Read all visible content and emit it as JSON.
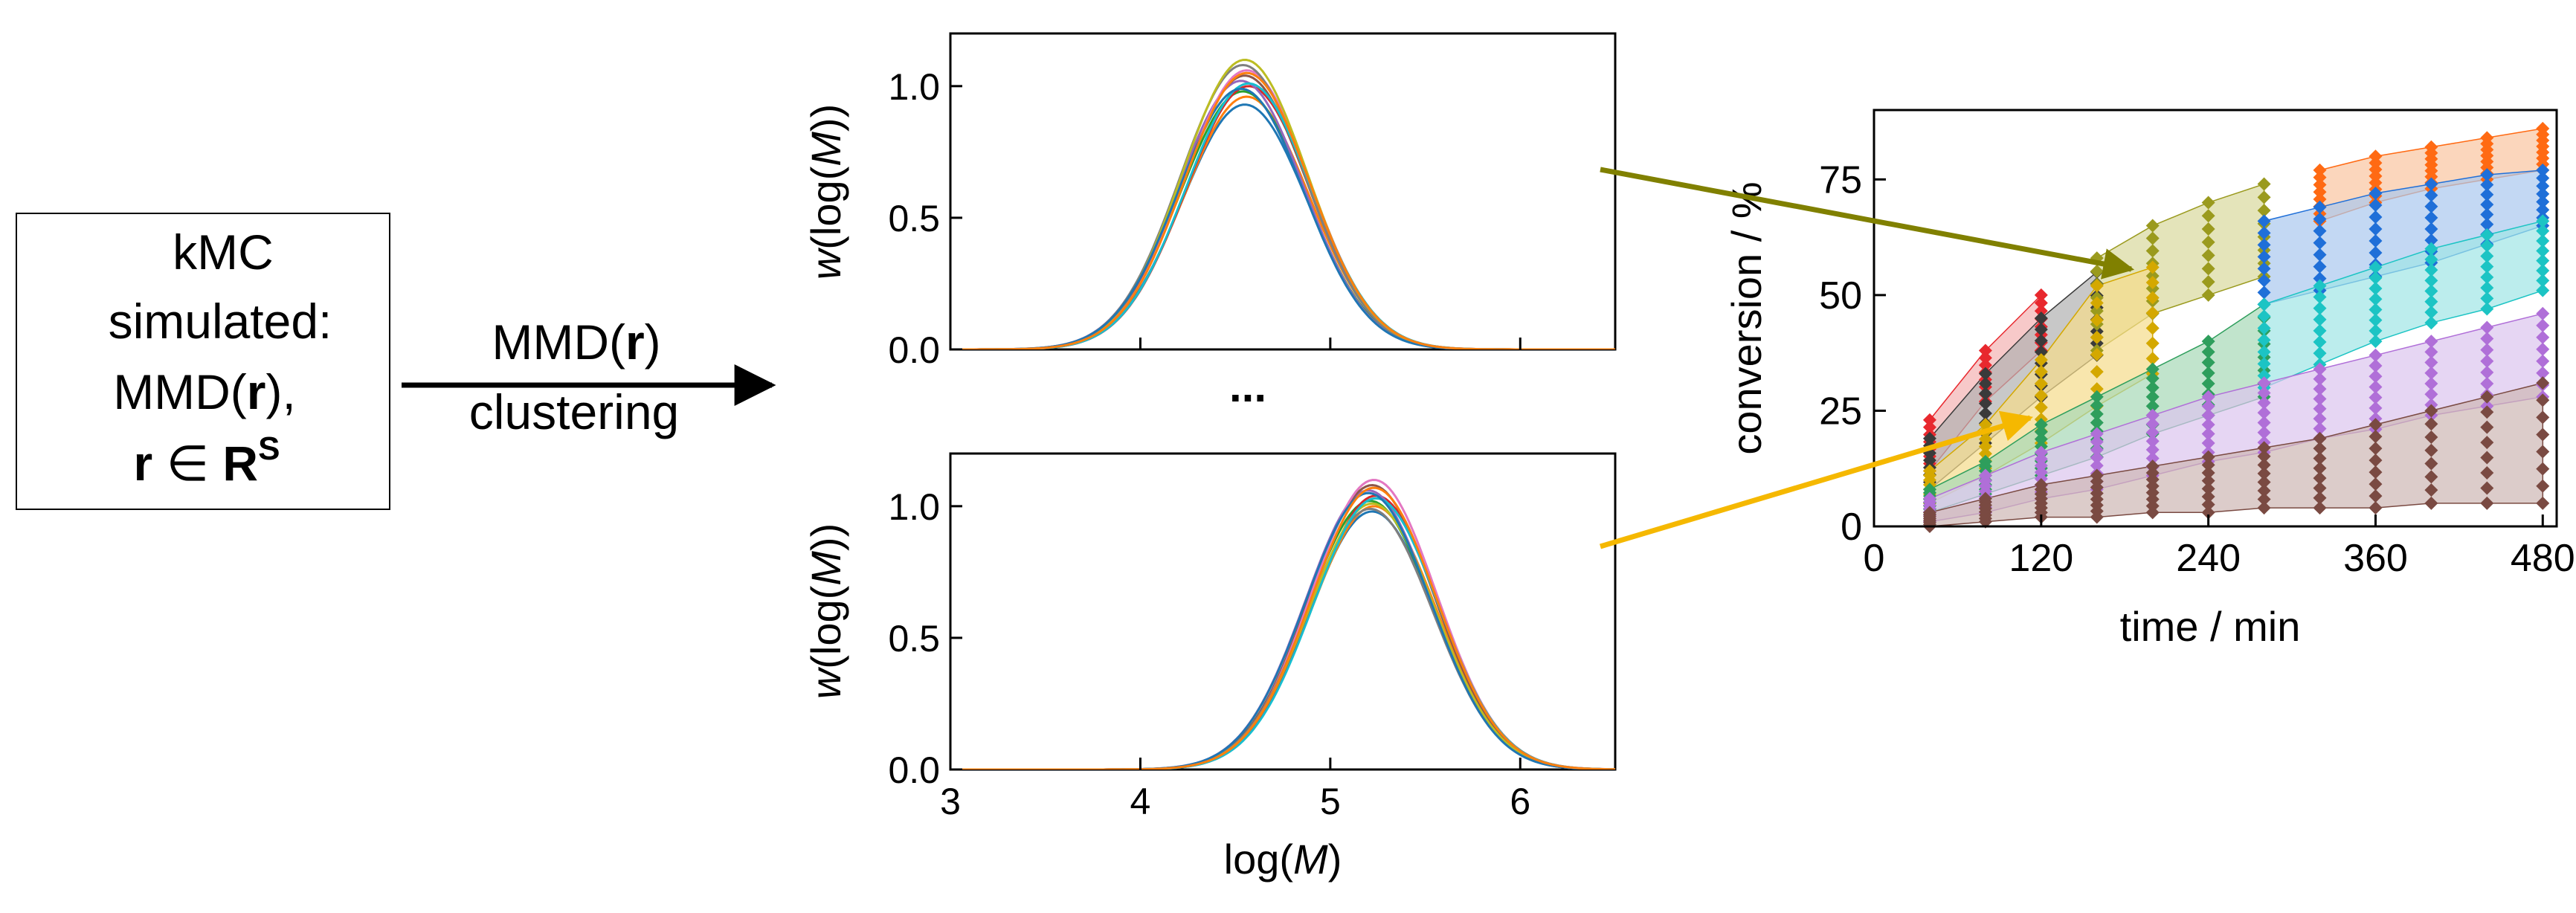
{
  "input_box": {
    "line1": "kMC",
    "line2": "simulated:",
    "line3_prefix": "MMD(",
    "line3_bold": "r",
    "line3_suffix": "),",
    "line4_r": "r",
    "line4_in": " ∈ ",
    "line4_R": "R",
    "line4_sup": "S"
  },
  "arrow_label": {
    "line1_prefix": "MMD(",
    "line1_bold": "r",
    "line1_suffix": ")",
    "line2": "clustering"
  },
  "ellipsis": "...",
  "colors": {
    "olive_arrow": "#808000",
    "yellow_arrow": "#f5b800",
    "curve_palette": [
      "#1f77b4",
      "#ff7f0e",
      "#2ca02c",
      "#d62728",
      "#9467bd",
      "#8c564b",
      "#e377c2",
      "#7f7f7f",
      "#bcbd22",
      "#17becf"
    ]
  },
  "chart_data": [
    {
      "type": "line",
      "name": "mmd-top",
      "ylabel_prefix": "w",
      "ylabel_mid": "(log(",
      "ylabel_M": "M",
      "ylabel_suffix": "))",
      "xlim": [
        3,
        6.5
      ],
      "ylim": [
        0,
        1.2
      ],
      "yticks": [
        "0.0",
        "0.5",
        "1.0"
      ],
      "ytick_values": [
        0,
        0.5,
        1.0
      ],
      "peak_center": 4.55,
      "sigma": 0.33,
      "peak_heights": [
        0.93,
        0.96,
        0.98,
        1.0,
        1.02,
        1.04,
        1.06,
        1.08,
        1.1,
        1.01,
        0.99,
        1.05
      ],
      "peak_shifts": [
        0.0,
        0.01,
        -0.01,
        0.02,
        -0.02,
        0.0,
        0.01,
        -0.01,
        0.0,
        0.02,
        -0.02,
        0.01
      ]
    },
    {
      "type": "line",
      "name": "mmd-bottom",
      "ylabel_prefix": "w",
      "ylabel_mid": "(log(",
      "ylabel_M": "M",
      "ylabel_suffix": "))",
      "xlabel_prefix": "log(",
      "xlabel_M": "M",
      "xlabel_suffix": ")",
      "xlim": [
        3,
        6.5
      ],
      "ylim": [
        0,
        1.2
      ],
      "xticks": [
        "3",
        "4",
        "5",
        "6"
      ],
      "xtick_values": [
        3,
        4,
        5,
        6
      ],
      "yticks": [
        "0.0",
        "0.5",
        "1.0"
      ],
      "ytick_values": [
        0,
        0.5,
        1.0
      ],
      "peak_center": 5.22,
      "sigma": 0.33,
      "peak_heights": [
        0.98,
        1.0,
        1.02,
        1.04,
        1.06,
        1.08,
        1.1,
        0.99,
        1.01,
        1.03,
        1.05,
        1.07
      ],
      "peak_shifts": [
        0.0,
        0.01,
        -0.01,
        0.02,
        -0.02,
        0.0,
        0.01,
        -0.01,
        0.0,
        0.02,
        -0.02,
        0.01
      ]
    },
    {
      "type": "scatter",
      "name": "conversion-bands",
      "xlabel": "time / min",
      "ylabel": "conversion / %",
      "xlim": [
        0,
        490
      ],
      "ylim": [
        0,
        90
      ],
      "xticks": [
        "0",
        "120",
        "240",
        "360",
        "480"
      ],
      "xtick_values": [
        0,
        120,
        240,
        360,
        480
      ],
      "yticks": [
        "0",
        "25",
        "50",
        "75"
      ],
      "ytick_values": [
        0,
        25,
        50,
        75
      ],
      "series": [
        {
          "name": "red",
          "color": "#e8282e",
          "fill": "#f4b2b2",
          "x": [
            40,
            80,
            120
          ],
          "low": [
            12,
            27,
            38
          ],
          "high": [
            23,
            38,
            50
          ]
        },
        {
          "name": "dark-gray",
          "color": "#3a3a3a",
          "fill": "#b0b0b0",
          "x": [
            40,
            80,
            120,
            160
          ],
          "low": [
            8,
            18,
            28,
            37
          ],
          "high": [
            19,
            33,
            45,
            55
          ]
        },
        {
          "name": "olive",
          "color": "#9a9a1e",
          "fill": "#d9d99c",
          "x": [
            160,
            200,
            240,
            280
          ],
          "low": [
            38,
            46,
            50,
            54
          ],
          "high": [
            58,
            65,
            70,
            74
          ]
        },
        {
          "name": "gold",
          "color": "#d4a800",
          "fill": "#f5dc8a",
          "x": [
            40,
            80,
            120,
            160,
            200
          ],
          "low": [
            5,
            11,
            18,
            26,
            33
          ],
          "high": [
            12,
            22,
            36,
            52,
            56
          ]
        },
        {
          "name": "green",
          "color": "#2e9e5c",
          "fill": "#a6d8b6",
          "x": [
            40,
            80,
            120,
            160,
            200,
            240,
            280
          ],
          "low": [
            3,
            7,
            11,
            15,
            20,
            24,
            28
          ],
          "high": [
            8,
            14,
            22,
            28,
            34,
            40,
            48
          ]
        },
        {
          "name": "orange",
          "color": "#ff6a13",
          "fill": "#f9c49f",
          "x": [
            320,
            360,
            400,
            440,
            480
          ],
          "low": [
            66,
            70,
            73,
            75,
            77
          ],
          "high": [
            77,
            80,
            82,
            84,
            86
          ]
        },
        {
          "name": "blue",
          "color": "#1f6fd8",
          "fill": "#a9c7ee",
          "x": [
            280,
            320,
            360,
            400,
            440,
            480
          ],
          "low": [
            48,
            51,
            54,
            57,
            61,
            65
          ],
          "high": [
            66,
            69,
            72,
            74,
            76,
            77
          ]
        },
        {
          "name": "cyan",
          "color": "#1cc4c4",
          "fill": "#9fe6e6",
          "x": [
            280,
            320,
            360,
            400,
            440,
            480
          ],
          "low": [
            30,
            35,
            40,
            44,
            47,
            51
          ],
          "high": [
            48,
            52,
            56,
            60,
            63,
            66
          ]
        },
        {
          "name": "purple",
          "color": "#b06fd8",
          "fill": "#dcc5ee",
          "x": [
            40,
            80,
            120,
            160,
            200,
            240,
            280,
            320,
            360,
            400,
            440,
            480
          ],
          "low": [
            1,
            3,
            6,
            8,
            11,
            14,
            16,
            19,
            21,
            24,
            26,
            28
          ],
          "high": [
            6,
            11,
            16,
            20,
            24,
            28,
            31,
            34,
            37,
            40,
            43,
            46
          ]
        },
        {
          "name": "brown",
          "color": "#7a4a42",
          "fill": "#cdb7b3",
          "x": [
            40,
            80,
            120,
            160,
            200,
            240,
            280,
            320,
            360,
            400,
            440,
            480
          ],
          "low": [
            0,
            1,
            2,
            2,
            3,
            3,
            4,
            4,
            4,
            5,
            5,
            5
          ],
          "high": [
            3,
            6,
            9,
            11,
            13,
            15,
            17,
            19,
            22,
            25,
            28,
            31
          ]
        }
      ]
    }
  ]
}
